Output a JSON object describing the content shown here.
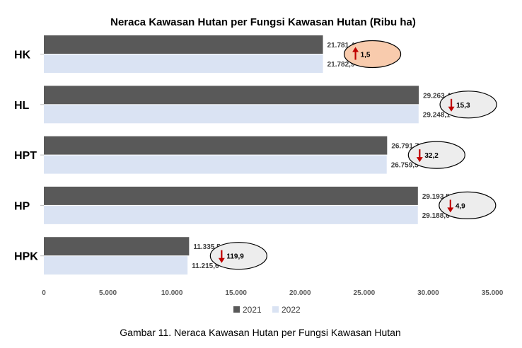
{
  "chart_data": {
    "type": "bar",
    "orientation": "horizontal",
    "title": "Neraca Kawasan Hutan per Fungsi Kawasan Hutan (Ribu ha)",
    "categories": [
      "HK",
      "HL",
      "HPT",
      "HP",
      "HPK"
    ],
    "series": [
      {
        "name": "2021",
        "color": "#595959",
        "values": [
          21781.4,
          29263.4,
          26791.7,
          29193.5,
          11335.5
        ],
        "labels": [
          "21.781,4",
          "29.263,4",
          "26.791,7",
          "29.193,5",
          "11.335,5"
        ]
      },
      {
        "name": "2022",
        "color": "#dae3f3",
        "values": [
          21782.9,
          29248.1,
          26759.5,
          29188.6,
          11215.6
        ],
        "labels": [
          "21.782,9",
          "29.248,1",
          "26.759,5",
          "29.188,6",
          "11.215,6"
        ]
      }
    ],
    "xlim": [
      0,
      35000
    ],
    "xticks": [
      0,
      5000,
      10000,
      15000,
      20000,
      25000,
      30000,
      35000
    ],
    "xtick_labels": [
      "0",
      "5.000",
      "10.000",
      "15.000",
      "20.000",
      "25.000",
      "30.000",
      "35.000"
    ],
    "legend_position": "bottom",
    "grid": false,
    "annotations": [
      {
        "category": "HK",
        "text": "1,5",
        "direction": "up",
        "fill": "#f8cbad",
        "arrow_color": "#c00000"
      },
      {
        "category": "HL",
        "text": "15,3",
        "direction": "down",
        "fill": "#ededed",
        "arrow_color": "#c00000"
      },
      {
        "category": "HPT",
        "text": "32,2",
        "direction": "down",
        "fill": "#ededed",
        "arrow_color": "#c00000"
      },
      {
        "category": "HP",
        "text": "4,9",
        "direction": "down",
        "fill": "#ededed",
        "arrow_color": "#c00000"
      },
      {
        "category": "HPK",
        "text": "119,9",
        "direction": "down",
        "fill": "#ededed",
        "arrow_color": "#c00000"
      }
    ]
  },
  "caption": "Gambar 11. Neraca Kawasan Hutan per Fungsi Kawasan Hutan"
}
